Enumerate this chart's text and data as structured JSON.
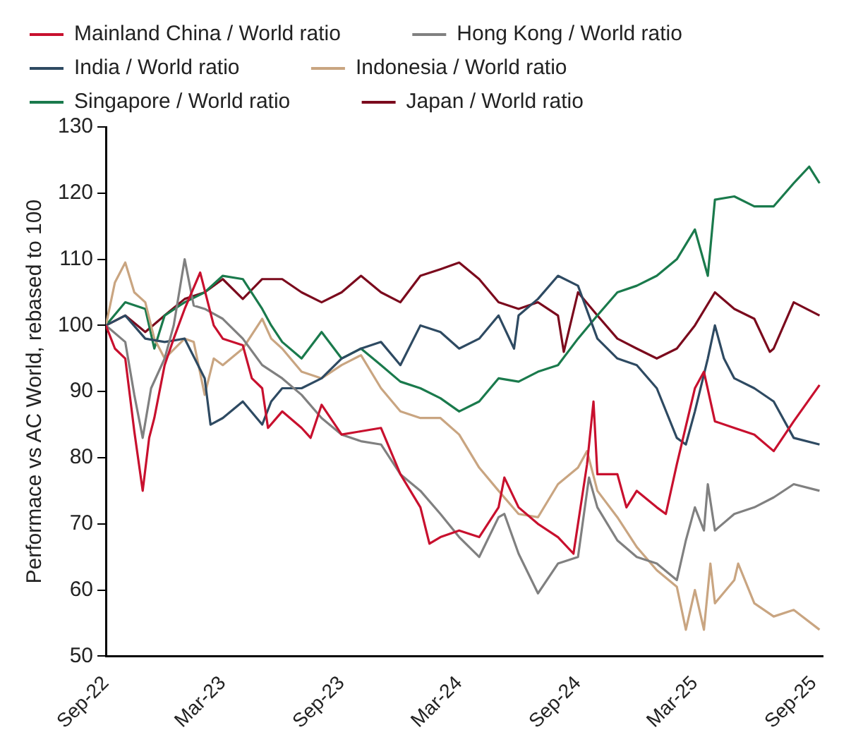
{
  "chart_data": {
    "type": "line",
    "ylabel": "Performace vs AC World, rebased to 100",
    "xlim": [
      "2022-09-01",
      "2025-09-15"
    ],
    "xticks": [
      {
        "value": "2022-09-01",
        "label": "Sep-22"
      },
      {
        "value": "2023-03-01",
        "label": "Mar-23"
      },
      {
        "value": "2023-09-01",
        "label": "Sep-23"
      },
      {
        "value": "2024-03-01",
        "label": "Mar-24"
      },
      {
        "value": "2024-09-01",
        "label": "Sep-24"
      },
      {
        "value": "2025-03-01",
        "label": "Mar-25"
      },
      {
        "value": "2025-09-01",
        "label": "Sep-25"
      }
    ],
    "ylim": [
      50,
      130
    ],
    "yticks": [
      50,
      60,
      70,
      80,
      90,
      100,
      110,
      120,
      130
    ],
    "grid": false,
    "legend": "top",
    "marker": "none",
    "line_style": "solid",
    "series": [
      {
        "name": "Mainland China / World ratio",
        "color": "#c8102e",
        "x": [
          "2022-09-01",
          "2022-09-15",
          "2022-10-01",
          "2022-10-15",
          "2022-10-28",
          "2022-11-07",
          "2022-11-15",
          "2022-12-01",
          "2022-12-15",
          "2023-01-01",
          "2023-01-25",
          "2023-02-15",
          "2023-03-01",
          "2023-04-01",
          "2023-04-15",
          "2023-05-01",
          "2023-05-10",
          "2023-06-01",
          "2023-07-01",
          "2023-07-15",
          "2023-08-01",
          "2023-09-01",
          "2023-10-01",
          "2023-11-01",
          "2023-12-01",
          "2024-01-01",
          "2024-01-15",
          "2024-02-01",
          "2024-03-01",
          "2024-04-01",
          "2024-05-01",
          "2024-05-10",
          "2024-06-01",
          "2024-07-01",
          "2024-08-01",
          "2024-08-25",
          "2024-09-15",
          "2024-09-25",
          "2024-10-01",
          "2024-11-01",
          "2024-11-15",
          "2024-12-01",
          "2025-01-01",
          "2025-01-15",
          "2025-02-01",
          "2025-03-01",
          "2025-03-15",
          "2025-04-01",
          "2025-05-01",
          "2025-06-01",
          "2025-07-01",
          "2025-08-01",
          "2025-09-10"
        ],
        "values": [
          100,
          96.5,
          95,
          84,
          75,
          83,
          86,
          94,
          98,
          102.5,
          108,
          100,
          98,
          97,
          92,
          90.5,
          84.5,
          87,
          84.5,
          83,
          88,
          83.5,
          84,
          84.5,
          77.5,
          72.5,
          67,
          68,
          69,
          68,
          72.5,
          77,
          72.5,
          70,
          68,
          65.5,
          79,
          88.5,
          77.5,
          77.5,
          72.5,
          75,
          72.5,
          71.5,
          79,
          90.5,
          93,
          85.5,
          84.5,
          83.5,
          81,
          85.5,
          91
        ]
      },
      {
        "name": "Hong Kong / World ratio",
        "color": "#808080",
        "x": [
          "2022-09-01",
          "2022-10-01",
          "2022-10-15",
          "2022-10-28",
          "2022-11-10",
          "2022-12-01",
          "2022-12-15",
          "2023-01-01",
          "2023-01-15",
          "2023-02-01",
          "2023-03-01",
          "2023-04-01",
          "2023-05-01",
          "2023-06-01",
          "2023-07-01",
          "2023-08-01",
          "2023-09-01",
          "2023-10-01",
          "2023-11-01",
          "2023-12-01",
          "2024-01-01",
          "2024-02-01",
          "2024-03-01",
          "2024-04-01",
          "2024-05-01",
          "2024-05-10",
          "2024-06-01",
          "2024-07-01",
          "2024-08-01",
          "2024-09-01",
          "2024-09-18",
          "2024-10-01",
          "2024-11-01",
          "2024-12-01",
          "2025-01-01",
          "2025-02-01",
          "2025-02-15",
          "2025-03-01",
          "2025-03-15",
          "2025-03-21",
          "2025-04-01",
          "2025-05-01",
          "2025-06-01",
          "2025-07-01",
          "2025-08-01",
          "2025-09-10"
        ],
        "values": [
          100,
          97.5,
          89.5,
          83,
          90.5,
          95,
          100,
          110,
          103,
          102.5,
          101,
          98,
          94,
          92,
          89.5,
          86,
          83.5,
          82.5,
          82,
          77.5,
          75,
          71.5,
          68,
          65,
          71,
          71.5,
          65.5,
          59.5,
          64,
          65,
          77,
          72.5,
          67.5,
          65,
          64,
          61.5,
          67.5,
          72.5,
          69,
          76,
          69,
          71.5,
          72.5,
          74,
          76,
          75
        ]
      },
      {
        "name": "India / World ratio",
        "color": "#2e4a62",
        "x": [
          "2022-09-01",
          "2022-10-01",
          "2022-11-01",
          "2022-12-01",
          "2023-01-01",
          "2023-02-01",
          "2023-02-10",
          "2023-03-01",
          "2023-04-01",
          "2023-05-01",
          "2023-05-15",
          "2023-06-01",
          "2023-07-01",
          "2023-08-01",
          "2023-09-01",
          "2023-10-01",
          "2023-11-01",
          "2023-12-01",
          "2024-01-01",
          "2024-02-01",
          "2024-03-01",
          "2024-04-01",
          "2024-05-01",
          "2024-05-25",
          "2024-06-01",
          "2024-07-01",
          "2024-08-01",
          "2024-09-01",
          "2024-10-01",
          "2024-11-01",
          "2024-12-01",
          "2025-01-01",
          "2025-02-01",
          "2025-02-15",
          "2025-03-01",
          "2025-03-21",
          "2025-04-01",
          "2025-04-15",
          "2025-05-01",
          "2025-06-01",
          "2025-07-01",
          "2025-08-01",
          "2025-09-10"
        ],
        "values": [
          100,
          101.5,
          98,
          97.5,
          98,
          92,
          85,
          86,
          88.5,
          85,
          88.5,
          90.5,
          90.5,
          92,
          95,
          96.5,
          97.5,
          94,
          100,
          99,
          96.5,
          98,
          101.5,
          96.5,
          101.5,
          104,
          107.5,
          106,
          98,
          95,
          94,
          90.5,
          83,
          82,
          87,
          95,
          100,
          95,
          92,
          90.5,
          88.5,
          83,
          82
        ]
      },
      {
        "name": "Indonesia / World ratio",
        "color": "#c9a581",
        "x": [
          "2022-09-01",
          "2022-09-15",
          "2022-10-01",
          "2022-10-15",
          "2022-11-01",
          "2022-11-15",
          "2022-12-01",
          "2023-01-01",
          "2023-01-15",
          "2023-02-01",
          "2023-02-15",
          "2023-03-01",
          "2023-04-01",
          "2023-05-01",
          "2023-05-15",
          "2023-06-01",
          "2023-07-01",
          "2023-08-01",
          "2023-09-01",
          "2023-10-01",
          "2023-11-01",
          "2023-12-01",
          "2024-01-01",
          "2024-02-01",
          "2024-03-01",
          "2024-04-01",
          "2024-05-01",
          "2024-06-01",
          "2024-07-01",
          "2024-08-01",
          "2024-09-01",
          "2024-09-15",
          "2024-10-01",
          "2024-11-01",
          "2024-12-01",
          "2025-01-01",
          "2025-02-01",
          "2025-02-15",
          "2025-03-01",
          "2025-03-15",
          "2025-03-25",
          "2025-04-01",
          "2025-05-01",
          "2025-05-07",
          "2025-06-01",
          "2025-07-01",
          "2025-08-01",
          "2025-09-10"
        ],
        "values": [
          100,
          106.5,
          109.5,
          105,
          103.5,
          98,
          95,
          98,
          97.5,
          89.5,
          95,
          94,
          96.5,
          101,
          98,
          96.5,
          93,
          92,
          94,
          95.5,
          90.5,
          87,
          86,
          86,
          83.5,
          78.5,
          75,
          71.5,
          71,
          76,
          78.5,
          81,
          75,
          71,
          66.5,
          63,
          60.5,
          54,
          60,
          54,
          64,
          58,
          61.5,
          64,
          58,
          56,
          57,
          54
        ]
      },
      {
        "name": "Singapore / World ratio",
        "color": "#1a7a4c",
        "x": [
          "2022-09-01",
          "2022-10-01",
          "2022-11-01",
          "2022-11-15",
          "2022-12-01",
          "2023-01-01",
          "2023-02-01",
          "2023-03-01",
          "2023-04-01",
          "2023-05-01",
          "2023-05-15",
          "2023-06-01",
          "2023-07-01",
          "2023-08-01",
          "2023-09-01",
          "2023-10-01",
          "2023-11-01",
          "2023-12-01",
          "2024-01-01",
          "2024-02-01",
          "2024-03-01",
          "2024-04-01",
          "2024-05-01",
          "2024-06-01",
          "2024-07-01",
          "2024-08-01",
          "2024-09-01",
          "2024-10-01",
          "2024-11-01",
          "2024-12-01",
          "2025-01-01",
          "2025-02-01",
          "2025-03-01",
          "2025-03-21",
          "2025-04-01",
          "2025-05-01",
          "2025-06-01",
          "2025-07-01",
          "2025-08-01",
          "2025-08-25",
          "2025-09-10"
        ],
        "values": [
          100,
          103.5,
          102.5,
          96.5,
          101.5,
          103.5,
          105,
          107.5,
          107,
          102.5,
          100,
          97.5,
          95,
          99,
          95,
          96.5,
          94,
          91.5,
          90.5,
          89,
          87,
          88.5,
          92,
          91.5,
          93,
          94,
          98,
          101.5,
          105,
          106,
          107.5,
          110,
          114.5,
          107.5,
          119,
          119.5,
          118,
          118,
          121.5,
          124,
          121.5
        ]
      },
      {
        "name": "Japan / World ratio",
        "color": "#7b0a1d",
        "x": [
          "2022-09-01",
          "2022-10-01",
          "2022-11-01",
          "2022-12-01",
          "2023-01-01",
          "2023-02-01",
          "2023-03-01",
          "2023-04-01",
          "2023-05-01",
          "2023-06-01",
          "2023-07-01",
          "2023-08-01",
          "2023-09-01",
          "2023-10-01",
          "2023-11-01",
          "2023-12-01",
          "2024-01-01",
          "2024-02-01",
          "2024-03-01",
          "2024-04-01",
          "2024-05-01",
          "2024-06-01",
          "2024-07-01",
          "2024-08-01",
          "2024-08-10",
          "2024-09-01",
          "2024-10-01",
          "2024-11-01",
          "2024-12-01",
          "2025-01-01",
          "2025-02-01",
          "2025-03-01",
          "2025-04-01",
          "2025-05-01",
          "2025-06-01",
          "2025-06-25",
          "2025-07-01",
          "2025-08-01",
          "2025-09-10"
        ],
        "values": [
          100,
          101.5,
          99,
          101.5,
          104,
          105,
          107,
          104,
          107,
          107,
          105,
          103.5,
          105,
          107.5,
          105,
          103.5,
          107.5,
          108.5,
          109.5,
          107,
          103.5,
          102.5,
          103.5,
          101.5,
          96,
          105,
          101.5,
          98,
          96.5,
          95,
          96.5,
          100,
          105,
          102.5,
          101,
          96,
          96.5,
          103.5,
          101.5
        ]
      }
    ]
  }
}
